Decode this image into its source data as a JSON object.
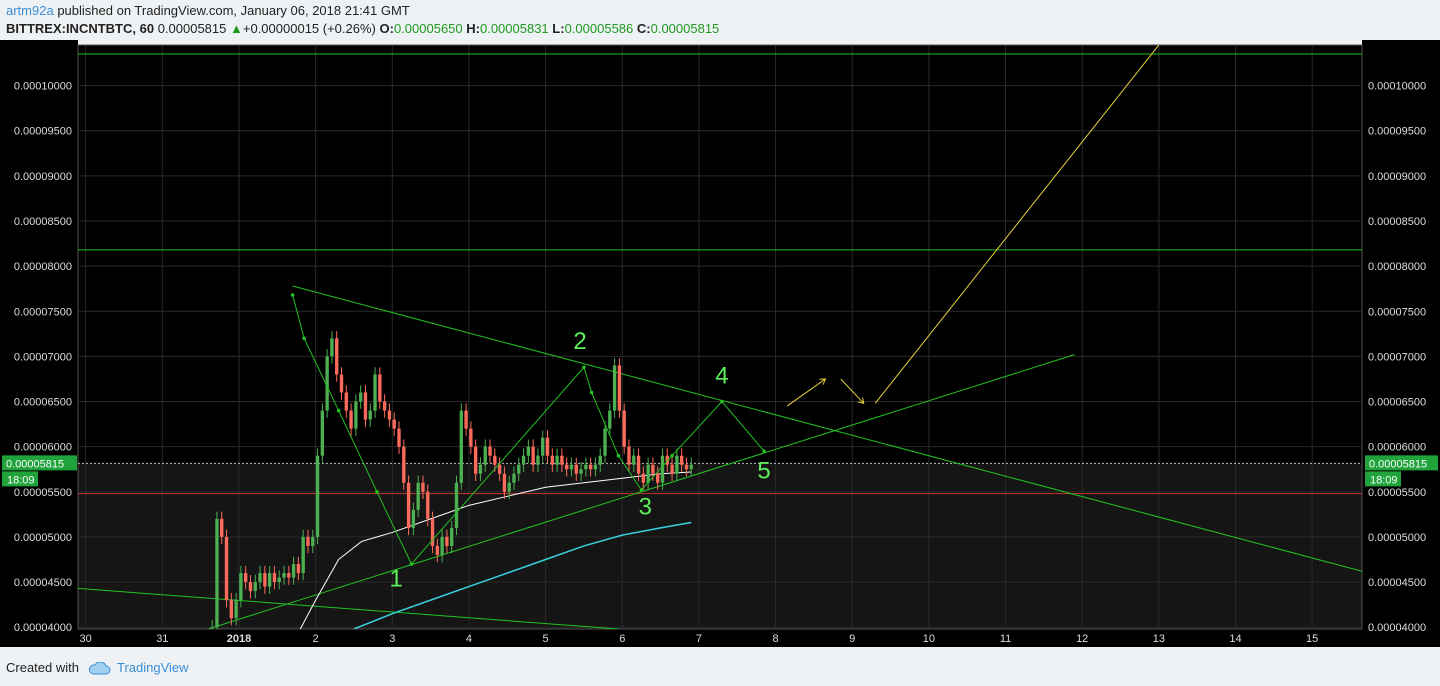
{
  "header": {
    "user": "artm92a",
    "published_text": "published on TradingView.com, January 06, 2018 21:41 GMT",
    "symbol": "BITTREX:INCNTBTC, 60",
    "last": "0.00005815",
    "change_arrow": "▲",
    "change": "+0.00000015 (+0.26%)",
    "o_label": "O:",
    "o": "0.00005650",
    "h_label": "H:",
    "h": "0.00005831",
    "l_label": "L:",
    "l": "0.00005586",
    "c_label": "C:",
    "c": "0.00005815"
  },
  "footer": {
    "created_with": "Created with",
    "brand": "TradingView",
    "logo_icon": "tradingview-cloud-icon"
  },
  "colors": {
    "background": "#000000",
    "grid": "#2a2a2a",
    "candle_up": "#4caf50",
    "candle_down": "#ff6b5a",
    "trendline": "#22c322",
    "projection": "#e6d33a",
    "support": "#c0392b",
    "price_tag": "#1fa33a",
    "ma_slow": "#ffffff",
    "ma_fast": "#3ad0e0"
  },
  "chart_data": {
    "type": "candlestick",
    "x_tick_labels": [
      "30",
      "31",
      "2018",
      "2",
      "3",
      "4",
      "5",
      "6",
      "7",
      "8",
      "9",
      "10",
      "11",
      "12",
      "13",
      "14",
      "15"
    ],
    "x_tick_days": [
      -2,
      -1,
      0,
      1,
      2,
      3,
      4,
      5,
      6,
      7,
      8,
      9,
      10,
      11,
      12,
      13,
      14
    ],
    "y_tick_labels": [
      "0.00004000",
      "0.00004500",
      "0.00005000",
      "0.00005500",
      "0.00006000",
      "0.00006500",
      "0.00007000",
      "0.00007500",
      "0.00008000",
      "0.00008500",
      "0.00009000",
      "0.00009500",
      "0.00010000"
    ],
    "y_tick_values": [
      4.0,
      4.5,
      5.0,
      5.5,
      6.0,
      6.5,
      7.0,
      7.5,
      8.0,
      8.5,
      9.0,
      9.5,
      10.0
    ],
    "y_unit_note": "values in 1e-5 BTC",
    "ylim": [
      3.98,
      10.45
    ],
    "xlim": [
      -2.1,
      14.65
    ],
    "last_price_label": "0.00005815",
    "last_price": 5.815,
    "countdown": "18:09",
    "candles_close": [
      4.0,
      5.2,
      5.0,
      4.3,
      4.1,
      4.3,
      4.6,
      4.5,
      4.4,
      4.5,
      4.6,
      4.45,
      4.6,
      4.5,
      4.55,
      4.6,
      4.55,
      4.7,
      4.6,
      5.0,
      4.9,
      5.0,
      5.9,
      6.4,
      7.0,
      7.2,
      6.8,
      6.6,
      6.4,
      6.2,
      6.5,
      6.6,
      6.3,
      6.4,
      6.8,
      6.5,
      6.4,
      6.3,
      6.2,
      6.0,
      5.6,
      5.1,
      5.3,
      5.6,
      5.5,
      5.2,
      4.9,
      4.8,
      5.0,
      4.9,
      5.1,
      5.6,
      6.4,
      6.2,
      6.0,
      5.7,
      5.8,
      6.0,
      5.9,
      5.8,
      5.7,
      5.5,
      5.6,
      5.7,
      5.8,
      5.9,
      6.0,
      5.8,
      5.9,
      6.1,
      5.9,
      5.8,
      5.9,
      5.8,
      5.75,
      5.8,
      5.7,
      5.75,
      5.8,
      5.75,
      5.8,
      5.9,
      6.2,
      6.4,
      6.9,
      6.4,
      6.0,
      5.8,
      5.9,
      5.7,
      5.6,
      5.8,
      5.7,
      5.6,
      5.9,
      5.8,
      5.7,
      5.9,
      5.8,
      5.75,
      5.8
    ],
    "candles_start_day": -0.35,
    "candles_end_day": 5.9,
    "ma_slow": {
      "x": [
        0.8,
        1.0,
        1.3,
        1.6,
        2.0,
        2.5,
        3.0,
        3.5,
        4.0,
        4.5,
        5.0,
        5.5,
        5.9
      ],
      "y": [
        3.98,
        4.3,
        4.75,
        4.95,
        5.05,
        5.2,
        5.35,
        5.45,
        5.55,
        5.6,
        5.65,
        5.7,
        5.72
      ]
    },
    "ma_fast": {
      "x": [
        1.5,
        2.0,
        2.5,
        3.0,
        3.5,
        4.0,
        4.5,
        5.0,
        5.5,
        5.9
      ],
      "y": [
        3.98,
        4.15,
        4.3,
        4.45,
        4.6,
        4.75,
        4.9,
        5.02,
        5.1,
        5.16
      ]
    },
    "trendlines": [
      {
        "name": "horizontal-top",
        "x": [
          -2.1,
          14.65
        ],
        "y": [
          10.35,
          10.35
        ]
      },
      {
        "name": "horizontal-mid",
        "x": [
          -2.1,
          14.65
        ],
        "y": [
          8.18,
          8.18
        ]
      },
      {
        "name": "support-red",
        "x": [
          -2.1,
          14.65
        ],
        "y": [
          5.48,
          5.48
        ],
        "color": "support"
      },
      {
        "name": "last-price-dotted",
        "x": [
          -2.1,
          14.65
        ],
        "y": [
          5.815,
          5.815
        ],
        "dashed": true
      },
      {
        "name": "descending-resistance",
        "x": [
          0.7,
          14.65
        ],
        "y": [
          7.78,
          4.62
        ]
      },
      {
        "name": "ascending-support",
        "x": [
          -0.4,
          10.9
        ],
        "y": [
          3.98,
          7.02
        ]
      },
      {
        "name": "lower-descending",
        "x": [
          -2.1,
          4.95
        ],
        "y": [
          4.43,
          3.98
        ]
      }
    ],
    "wave_path": {
      "x": [
        0.7,
        0.85,
        1.3,
        1.8,
        2.25,
        4.5,
        4.6,
        4.95,
        5.25,
        5.65,
        6.3,
        6.85
      ],
      "y": [
        7.68,
        7.2,
        6.4,
        5.5,
        4.7,
        6.88,
        6.6,
        5.9,
        5.52,
        5.9,
        6.5,
        5.95
      ]
    },
    "projection_lines": [
      {
        "x": [
          7.15,
          7.65
        ],
        "y": [
          6.45,
          6.75
        ]
      },
      {
        "x": [
          7.85,
          8.15
        ],
        "y": [
          6.75,
          6.48
        ]
      },
      {
        "x": [
          8.3,
          12.0
        ],
        "y": [
          6.48,
          10.45
        ]
      }
    ],
    "wave_labels": [
      {
        "text": "1",
        "x": 2.05,
        "y": 4.45
      },
      {
        "text": "2",
        "x": 4.45,
        "y": 7.08
      },
      {
        "text": "3",
        "x": 5.3,
        "y": 5.25
      },
      {
        "text": "4",
        "x": 6.3,
        "y": 6.7
      },
      {
        "text": "5",
        "x": 6.85,
        "y": 5.65
      }
    ]
  }
}
